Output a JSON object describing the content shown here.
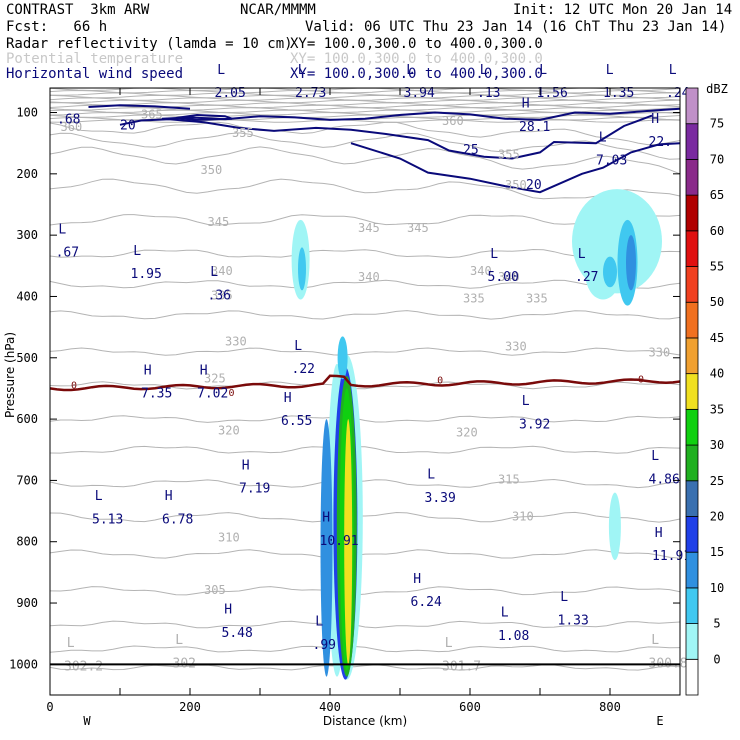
{
  "header": {
    "model": "CONTRAST  3km ARW",
    "org": "NCAR/MMMM",
    "init": "Init: 12 UTC Mon 20 Jan 14",
    "fcst": "Fcst:   66 h",
    "valid": "Valid: 06 UTC Thu 23 Jan 14 (16 ChT Thu 23 Jan 14)",
    "fields": [
      {
        "name": "Radar reflectivity (lamda = 10 cm)",
        "xy": "XY= 100.0,300.0 to 400.0,300.0",
        "color": "#000000"
      },
      {
        "name": "Potential temperature",
        "xy": "XY= 100.0,300.0 to 400.0,300.0",
        "color": "#c8c8c8"
      },
      {
        "name": "Horizontal wind speed",
        "xy": "XY= 100.0,300.0 to 400.0,300.0",
        "color": "#0a0a7a"
      }
    ]
  },
  "chart_data": {
    "type": "cross-section",
    "xlabel": "Distance (km)",
    "ylabel": "Pressure (hPa)",
    "xlim": [
      0,
      900
    ],
    "ylim": [
      1050,
      60
    ],
    "x_ticks": [
      0,
      200,
      400,
      600,
      800
    ],
    "y_ticks": [
      100,
      200,
      300,
      400,
      500,
      600,
      700,
      800,
      900,
      1000
    ],
    "x_end_labels": {
      "left": "W",
      "right": "E"
    },
    "colorbar": {
      "unit": "dBZ",
      "levels": [
        0,
        5,
        10,
        15,
        20,
        25,
        30,
        35,
        40,
        45,
        50,
        55,
        60,
        65,
        70,
        75
      ],
      "colors": [
        "#ffffff",
        "#a0f5f5",
        "#40c8f0",
        "#3090e0",
        "#2040e8",
        "#3a70b0",
        "#20b020",
        "#10d010",
        "#f0e020",
        "#f0a030",
        "#f07020",
        "#f04020",
        "#e01010",
        "#b00000",
        "#8a2a8a",
        "#7a2aa0",
        "#c090c8"
      ]
    },
    "theta_labels": [
      {
        "x": 15,
        "p": 130,
        "t": "360"
      },
      {
        "x": 130,
        "p": 110,
        "t": "365"
      },
      {
        "x": 560,
        "p": 120,
        "t": "360"
      },
      {
        "x": 260,
        "p": 140,
        "t": "355"
      },
      {
        "x": 640,
        "p": 175,
        "t": "355"
      },
      {
        "x": 215,
        "p": 200,
        "t": "350"
      },
      {
        "x": 650,
        "p": 225,
        "t": "350"
      },
      {
        "x": 225,
        "p": 285,
        "t": "345"
      },
      {
        "x": 440,
        "p": 295,
        "t": "345"
      },
      {
        "x": 510,
        "p": 295,
        "t": "345"
      },
      {
        "x": 230,
        "p": 365,
        "t": "340"
      },
      {
        "x": 440,
        "p": 375,
        "t": "340"
      },
      {
        "x": 600,
        "p": 365,
        "t": "340"
      },
      {
        "x": 640,
        "p": 375,
        "t": "340"
      },
      {
        "x": 230,
        "p": 405,
        "t": "335"
      },
      {
        "x": 590,
        "p": 410,
        "t": "335"
      },
      {
        "x": 680,
        "p": 410,
        "t": "335"
      },
      {
        "x": 250,
        "p": 480,
        "t": "330"
      },
      {
        "x": 650,
        "p": 488,
        "t": "330"
      },
      {
        "x": 855,
        "p": 498,
        "t": "330"
      },
      {
        "x": 220,
        "p": 540,
        "t": "325"
      },
      {
        "x": 240,
        "p": 625,
        "t": "320"
      },
      {
        "x": 580,
        "p": 628,
        "t": "320"
      },
      {
        "x": 640,
        "p": 705,
        "t": "315"
      },
      {
        "x": 660,
        "p": 765,
        "t": "310"
      },
      {
        "x": 240,
        "p": 800,
        "t": "310"
      },
      {
        "x": 220,
        "p": 885,
        "t": "305"
      }
    ],
    "wind_labels": [
      {
        "x": 100,
        "p": 128,
        "t": "20"
      },
      {
        "x": 590,
        "p": 168,
        "t": "25"
      },
      {
        "x": 680,
        "p": 225,
        "t": "20"
      }
    ],
    "zero_labels": [
      {
        "x": 30,
        "p": 550,
        "t": "0"
      },
      {
        "x": 255,
        "p": 562,
        "t": "0"
      },
      {
        "x": 553,
        "p": 542,
        "t": "0"
      },
      {
        "x": 840,
        "p": 540,
        "t": "0"
      }
    ],
    "extrema": [
      {
        "kind": "L",
        "x": 235,
        "p": 75,
        "v": "2.05"
      },
      {
        "kind": "L",
        "x": 350,
        "p": 75,
        "v": "2.73"
      },
      {
        "kind": "L",
        "x": 505,
        "p": 75,
        "v": "3.94"
      },
      {
        "kind": "L",
        "x": 610,
        "p": 75,
        "v": ".13"
      },
      {
        "kind": "L",
        "x": 695,
        "p": 75,
        "v": "1.56"
      },
      {
        "kind": "L",
        "x": 790,
        "p": 75,
        "v": "1.35"
      },
      {
        "kind": "L",
        "x": 880,
        "p": 75,
        "v": ".24"
      },
      {
        "kind": "",
        "x": 10,
        "p": 118,
        "v": ".68"
      },
      {
        "kind": "H",
        "x": 670,
        "p": 130,
        "v": "28.1"
      },
      {
        "kind": "H",
        "x": 855,
        "p": 155,
        "v": "22."
      },
      {
        "kind": "L",
        "x": 780,
        "p": 185,
        "v": "7.03"
      },
      {
        "kind": "L",
        "x": 8,
        "p": 335,
        "v": ".67"
      },
      {
        "kind": "L",
        "x": 115,
        "p": 370,
        "v": "1.95"
      },
      {
        "kind": "L",
        "x": 225,
        "p": 405,
        "v": ".36"
      },
      {
        "kind": "L",
        "x": 625,
        "p": 375,
        "v": "5.00"
      },
      {
        "kind": "L",
        "x": 750,
        "p": 375,
        "v": ".27"
      },
      {
        "kind": "L",
        "x": 345,
        "p": 525,
        "v": ".22"
      },
      {
        "kind": "H",
        "x": 130,
        "p": 565,
        "v": "7.35"
      },
      {
        "kind": "H",
        "x": 210,
        "p": 565,
        "v": "7.02"
      },
      {
        "kind": "H",
        "x": 330,
        "p": 610,
        "v": "6.55"
      },
      {
        "kind": "L",
        "x": 670,
        "p": 615,
        "v": "3.92"
      },
      {
        "kind": "L",
        "x": 855,
        "p": 705,
        "v": "4.86"
      },
      {
        "kind": "H",
        "x": 270,
        "p": 720,
        "v": "7.19"
      },
      {
        "kind": "L",
        "x": 535,
        "p": 735,
        "v": "3.39"
      },
      {
        "kind": "L",
        "x": 60,
        "p": 770,
        "v": "5.13"
      },
      {
        "kind": "H",
        "x": 160,
        "p": 770,
        "v": "6.78"
      },
      {
        "kind": "H",
        "x": 385,
        "p": 805,
        "v": "10.91"
      },
      {
        "kind": "H",
        "x": 860,
        "p": 830,
        "v": "11.91"
      },
      {
        "kind": "H",
        "x": 515,
        "p": 905,
        "v": "6.24"
      },
      {
        "kind": "L",
        "x": 725,
        "p": 935,
        "v": "1.33"
      },
      {
        "kind": "H",
        "x": 245,
        "p": 955,
        "v": "5.48"
      },
      {
        "kind": "L",
        "x": 640,
        "p": 960,
        "v": "1.08"
      },
      {
        "kind": "L",
        "x": 375,
        "p": 975,
        "v": ".99"
      },
      {
        "kind": "L",
        "x": 20,
        "p": 1010,
        "v": "302.2"
      },
      {
        "kind": "L",
        "x": 175,
        "p": 1005,
        "v": "302"
      },
      {
        "kind": "L",
        "x": 560,
        "p": 1010,
        "v": "301.7"
      },
      {
        "kind": "L",
        "x": 855,
        "p": 1005,
        "v": "300.8"
      }
    ]
  }
}
